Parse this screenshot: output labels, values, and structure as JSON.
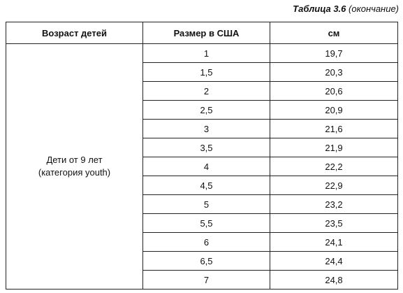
{
  "caption": {
    "number": "Таблица 3.6",
    "note": "(окончание)"
  },
  "table": {
    "headers": [
      "Возраст детей",
      "Размер в США",
      "см"
    ],
    "age_group": {
      "line1": "Дети от 9 лет",
      "line2": "(категория youth)"
    },
    "rows": [
      {
        "us_size": "1",
        "cm": "19,7"
      },
      {
        "us_size": "1,5",
        "cm": "20,3"
      },
      {
        "us_size": "2",
        "cm": "20,6"
      },
      {
        "us_size": "2,5",
        "cm": "20,9"
      },
      {
        "us_size": "3",
        "cm": "21,6"
      },
      {
        "us_size": "3,5",
        "cm": "21,9"
      },
      {
        "us_size": "4",
        "cm": "22,2"
      },
      {
        "us_size": "4,5",
        "cm": "22,9"
      },
      {
        "us_size": "5",
        "cm": "23,2"
      },
      {
        "us_size": "5,5",
        "cm": "23,5"
      },
      {
        "us_size": "6",
        "cm": "24,1"
      },
      {
        "us_size": "6,5",
        "cm": "24,4"
      },
      {
        "us_size": "7",
        "cm": "24,8"
      }
    ]
  }
}
